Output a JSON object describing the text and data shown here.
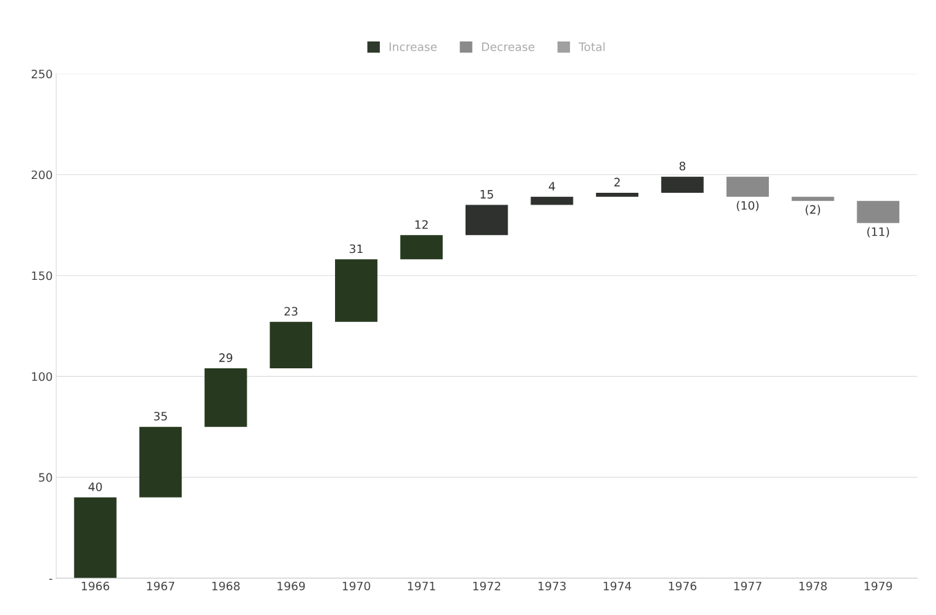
{
  "chart_data": {
    "type": "bar",
    "categories": [
      "1966",
      "1967",
      "1968",
      "1969",
      "1970",
      "1971",
      "1972",
      "1973",
      "1974",
      "1976",
      "1977",
      "1978",
      "1979"
    ],
    "series": [
      {
        "name": "Increase",
        "color": "#2e3a2b",
        "colors": [
          "#27391f",
          "#27391f",
          "#27391f",
          "#27391f",
          "#27391f",
          "#27391f",
          "#2f312e",
          "#2f312e",
          "#2f312e",
          "#2f312e",
          null,
          null,
          null
        ],
        "values": [
          40,
          35,
          29,
          23,
          31,
          12,
          15,
          4,
          2,
          8,
          null,
          null,
          null
        ],
        "base": [
          0,
          40,
          75,
          104,
          127,
          158,
          170,
          185,
          189,
          191,
          null,
          null,
          null
        ],
        "value_labels": [
          "40",
          "35",
          "29",
          "23",
          "31",
          "12",
          "15",
          "4",
          "2",
          "8",
          null,
          null,
          null
        ]
      },
      {
        "name": "Decrease",
        "color": "#8a8a8a",
        "values": [
          null,
          null,
          null,
          null,
          null,
          null,
          null,
          null,
          null,
          null,
          -10,
          -2,
          -11
        ],
        "base": [
          null,
          null,
          null,
          null,
          null,
          null,
          null,
          null,
          null,
          null,
          199,
          189,
          187
        ],
        "value_labels": [
          null,
          null,
          null,
          null,
          null,
          null,
          null,
          null,
          null,
          null,
          "(10)",
          "(2)",
          "(11)"
        ]
      },
      {
        "name": "Total",
        "color": "#a0a0a0",
        "values": [
          null,
          null,
          null,
          null,
          null,
          null,
          null,
          null,
          null,
          null,
          null,
          null,
          null
        ]
      }
    ],
    "ylim": [
      0,
      250
    ],
    "yticks": [
      {
        "value": 0,
        "label": "-"
      },
      50,
      100,
      150,
      200,
      250
    ],
    "grid": "y",
    "legend": "top"
  }
}
